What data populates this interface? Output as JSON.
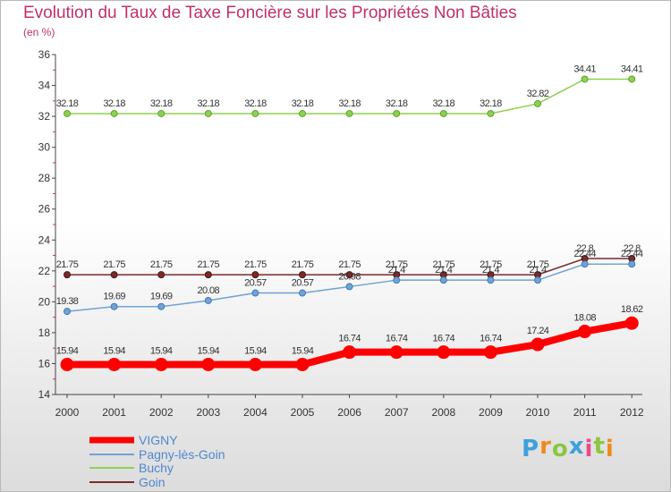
{
  "header": {
    "title": "Evolution du Taux de Taxe Foncière sur les Propriétés Non Bâties",
    "unit": "(en %)"
  },
  "brand": {
    "text": "Proxiti",
    "colors": [
      "#3fa0dd",
      "#f08a1c",
      "#8cc63f",
      "#3fa0dd",
      "#e84c8b",
      "#8cc63f",
      "#f08a1c"
    ]
  },
  "chart_data": {
    "type": "line",
    "title": "Evolution du Taux de Taxe Foncière sur les Propriétés Non Bâties",
    "ylabel": "(en %)",
    "xlabel": "",
    "x": [
      "2000",
      "2001",
      "2002",
      "2003",
      "2004",
      "2005",
      "2006",
      "2007",
      "2008",
      "2009",
      "2010",
      "2011",
      "2012"
    ],
    "ylim": [
      14,
      36
    ],
    "yticks": [
      14,
      16,
      18,
      20,
      22,
      24,
      26,
      28,
      30,
      32,
      34,
      36
    ],
    "grid": false,
    "legend": "bottom-left",
    "series": [
      {
        "name": "VIGNY",
        "color": "#ff0000",
        "values": [
          15.94,
          15.94,
          15.94,
          15.94,
          15.94,
          15.94,
          16.74,
          16.74,
          16.74,
          16.74,
          17.24,
          18.08,
          18.62
        ],
        "labels": [
          "15.94",
          "15.94",
          "15.94",
          "15.94",
          "15.94",
          "15.94",
          "16.74",
          "16.74",
          "16.74",
          "16.74",
          "17.24",
          "18.08",
          "18.62"
        ]
      },
      {
        "name": "Pagny-lès-Goin",
        "color": "#6fa3d6",
        "values": [
          19.38,
          19.69,
          19.69,
          20.08,
          20.57,
          20.57,
          20.98,
          21.4,
          21.4,
          21.4,
          21.4,
          22.44,
          22.44
        ],
        "labels": [
          "19.38",
          "19.69",
          "19.69",
          "20.08",
          "20.57",
          "20.57",
          "20.98",
          "21.4",
          "21.4",
          "21.4",
          "21.4",
          "22.44",
          "22.44"
        ]
      },
      {
        "name": "Buchy",
        "color": "#8fd14f",
        "values": [
          32.18,
          32.18,
          32.18,
          32.18,
          32.18,
          32.18,
          32.18,
          32.18,
          32.18,
          32.18,
          32.82,
          34.41,
          34.41
        ],
        "labels": [
          "32.18",
          "32.18",
          "32.18",
          "32.18",
          "32.18",
          "32.18",
          "32.18",
          "32.18",
          "32.18",
          "32.18",
          "32.82",
          "34.41",
          "34.41"
        ]
      },
      {
        "name": "Goin",
        "color": "#7a2a2a",
        "values": [
          21.75,
          21.75,
          21.75,
          21.75,
          21.75,
          21.75,
          21.75,
          21.75,
          21.75,
          21.75,
          21.75,
          22.8,
          22.8
        ],
        "labels": [
          "21.75",
          "21.75",
          "21.75",
          "21.75",
          "21.75",
          "21.75",
          "21.75",
          "21.75",
          "21.75",
          "21.75",
          "21.75",
          "22.8",
          "22.8"
        ]
      }
    ]
  }
}
